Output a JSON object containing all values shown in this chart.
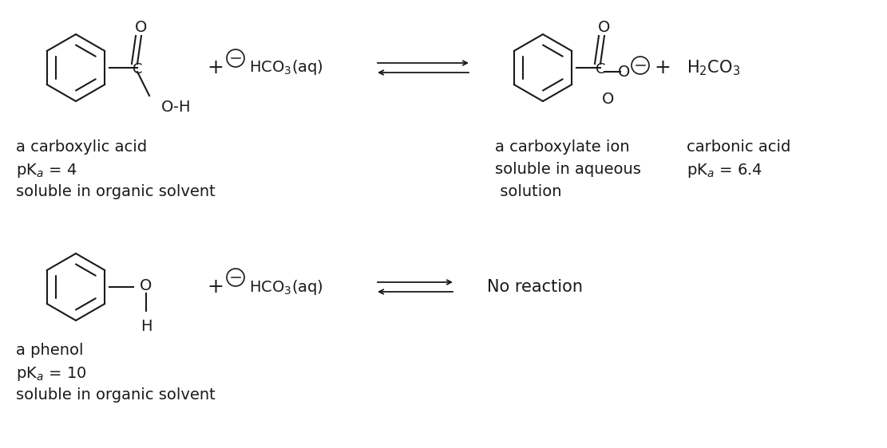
{
  "bg_color": "#ffffff",
  "text_color": "#1a1a1a",
  "figsize": [
    11.11,
    5.62
  ],
  "dpi": 100,
  "lw": 1.5,
  "col": "#1a1a1a",
  "reaction1": {
    "label1_lines": [
      "a carboxylic acid",
      "pK$_{a}$ = 4",
      "soluble in organic solvent"
    ],
    "label2_lines": [
      "a carboxylate ion",
      "soluble in aqueous",
      " solution"
    ],
    "label3_lines": [
      "carbonic acid",
      "pK$_{a}$ = 6.4"
    ]
  },
  "reaction2": {
    "label1_lines": [
      "a phenol",
      "pK$_{a}$ = 10",
      "soluble in organic solvent"
    ],
    "no_reaction_text": "No reaction"
  }
}
